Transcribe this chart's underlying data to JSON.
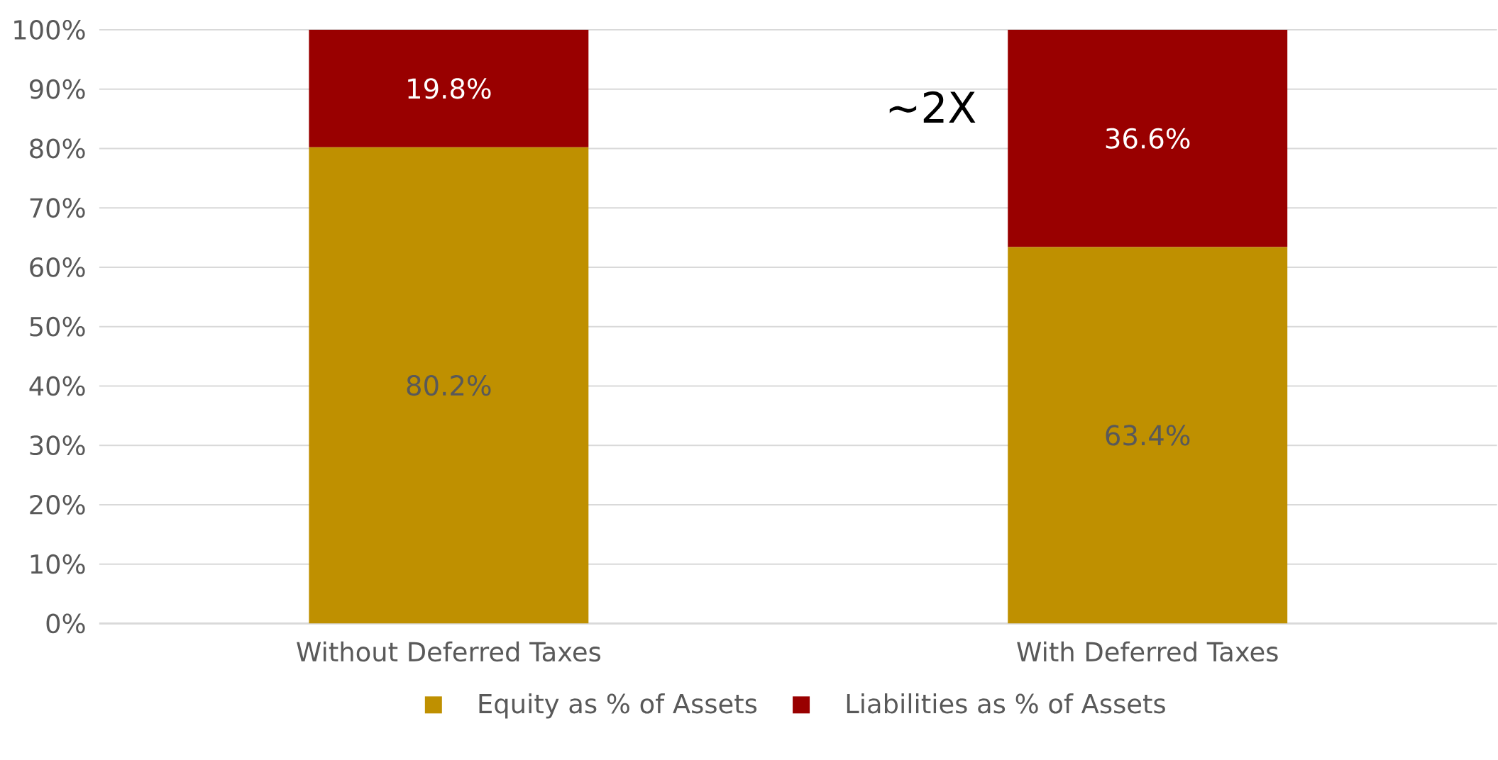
{
  "chart_data": {
    "type": "bar",
    "stacked": true,
    "categories": [
      "Without Deferred Taxes",
      "With Deferred Taxes"
    ],
    "series": [
      {
        "name": "Equity as % of Assets",
        "color": "#bf9000",
        "values": [
          80.2,
          63.4
        ],
        "value_labels": [
          "80.2%",
          "63.4%"
        ]
      },
      {
        "name": "Liabilities as % of Assets",
        "color": "#990000",
        "values": [
          19.8,
          36.6
        ],
        "value_labels": [
          "19.8%",
          "36.6%"
        ]
      }
    ],
    "ylim": [
      0,
      100
    ],
    "yticks": [
      {
        "value": 0,
        "label": "0%"
      },
      {
        "value": 10,
        "label": "10%"
      },
      {
        "value": 20,
        "label": "20%"
      },
      {
        "value": 30,
        "label": "30%"
      },
      {
        "value": 40,
        "label": "40%"
      },
      {
        "value": 50,
        "label": "50%"
      },
      {
        "value": 60,
        "label": "60%"
      },
      {
        "value": 70,
        "label": "70%"
      },
      {
        "value": 80,
        "label": "80%"
      },
      {
        "value": 90,
        "label": "90%"
      },
      {
        "value": 100,
        "label": "100%"
      }
    ],
    "grid": "y",
    "legend": "bottom",
    "annotations": [
      "~2X"
    ]
  }
}
